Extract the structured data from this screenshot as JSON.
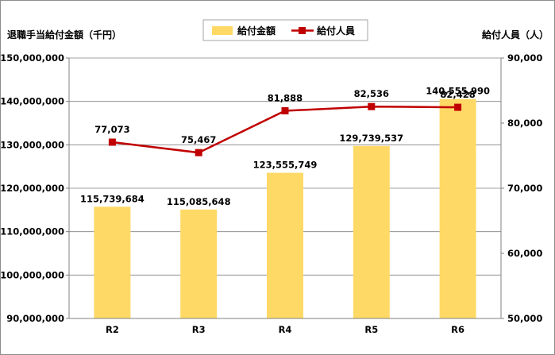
{
  "chart_data": {
    "type": "bar+line",
    "categories": [
      "R2",
      "R3",
      "R4",
      "R5",
      "R6"
    ],
    "series": [
      {
        "name": "給付金額",
        "type": "bar",
        "axis": "left",
        "values": [
          115739684,
          115085648,
          123555749,
          129739537,
          140555990
        ],
        "labels": [
          "115,739,684",
          "115,085,648",
          "123,555,749",
          "129,739,537",
          "140,555,990"
        ],
        "color": "#FFD966"
      },
      {
        "name": "給付人員",
        "type": "line",
        "axis": "right",
        "values": [
          77073,
          75467,
          81888,
          82536,
          82428
        ],
        "labels": [
          "77,073",
          "75,467",
          "81,888",
          "82,536",
          "82,428"
        ],
        "color": "#C00000"
      }
    ],
    "ylabel_left": "退職手当給付金額（千円）",
    "ylabel_right": "給付人員（人）",
    "ylim_left": [
      90000000,
      150000000
    ],
    "ylim_right": [
      50000,
      90000
    ],
    "yticks_left": [
      90000000,
      100000000,
      110000000,
      120000000,
      130000000,
      140000000,
      150000000
    ],
    "yticks_left_labels": [
      "90,000,000",
      "100,000,000",
      "110,000,000",
      "120,000,000",
      "130,000,000",
      "140,000,000",
      "150,000,000"
    ],
    "yticks_right": [
      50000,
      60000,
      70000,
      80000,
      90000
    ],
    "yticks_right_labels": [
      "50,000",
      "60,000",
      "70,000",
      "80,000",
      "90,000"
    ],
    "grid": "horizontal",
    "legend": "top-center",
    "gridline_color": "#808080"
  }
}
